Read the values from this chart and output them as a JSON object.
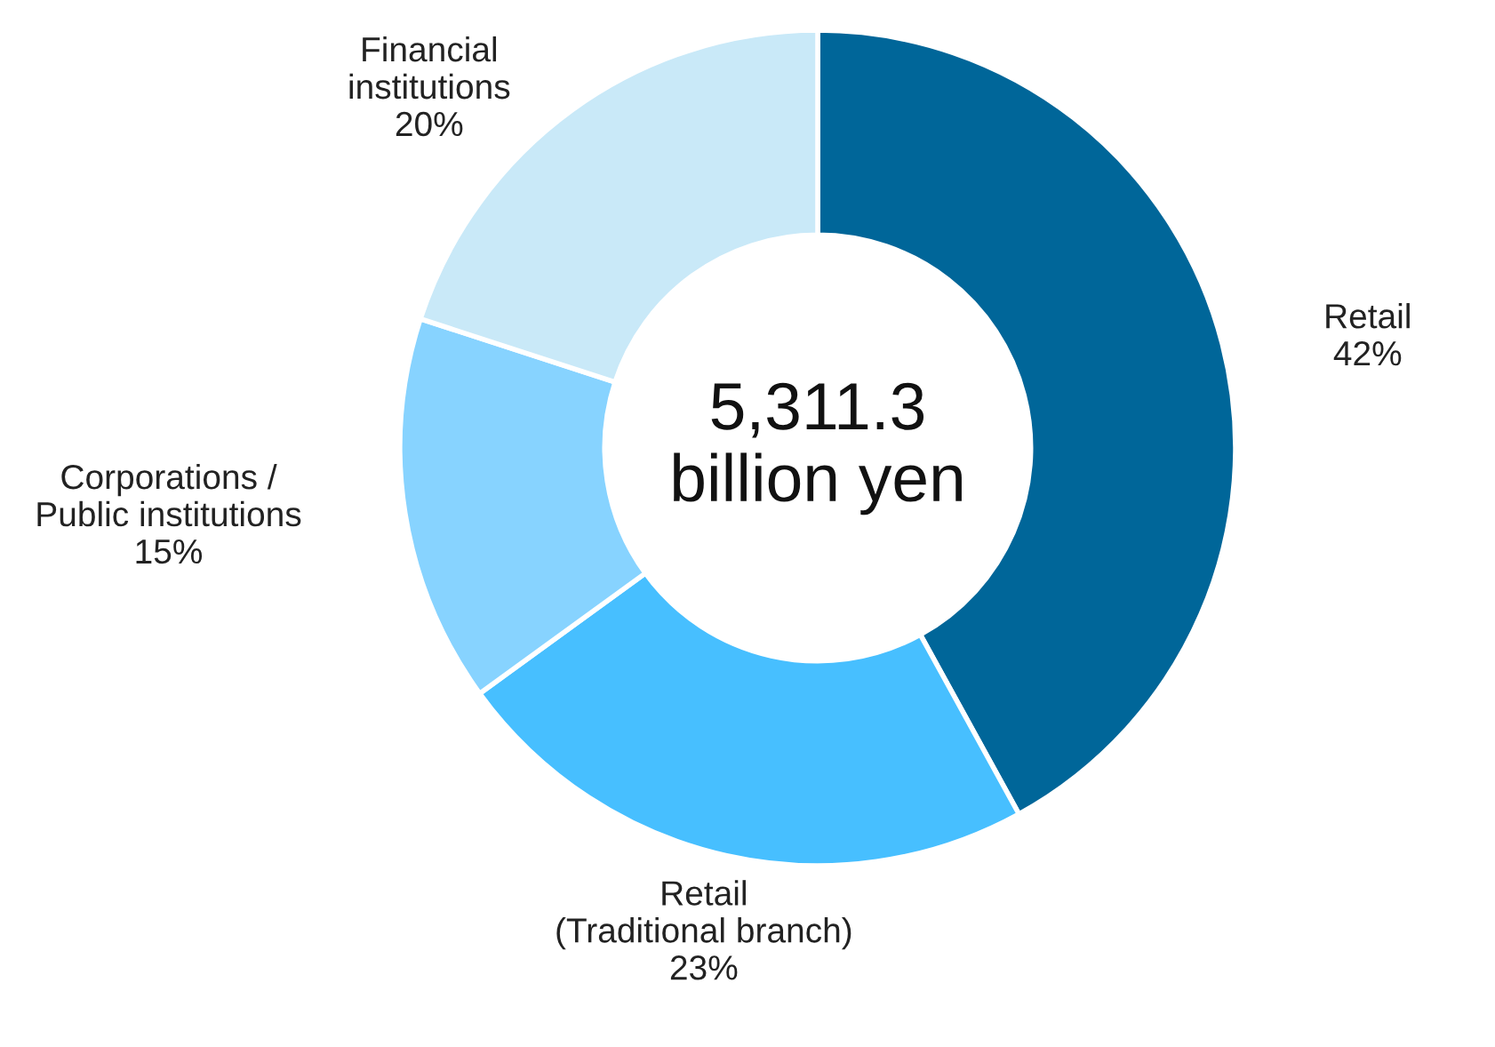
{
  "chart_data": {
    "type": "donut",
    "categories": [
      "Retail",
      "Retail\n(Traditional branch)",
      "Corporations /\nPublic institutions",
      "Financial\ninstitutions"
    ],
    "values": [
      42,
      23,
      15,
      20
    ],
    "value_labels": [
      "42%",
      "23%",
      "15%",
      "20%"
    ],
    "colors": [
      "#006699",
      "#47bfff",
      "#87d3ff",
      "#c9e9f8"
    ],
    "annotations": [
      "5,311.3\nbillion yen"
    ],
    "legend": false
  }
}
